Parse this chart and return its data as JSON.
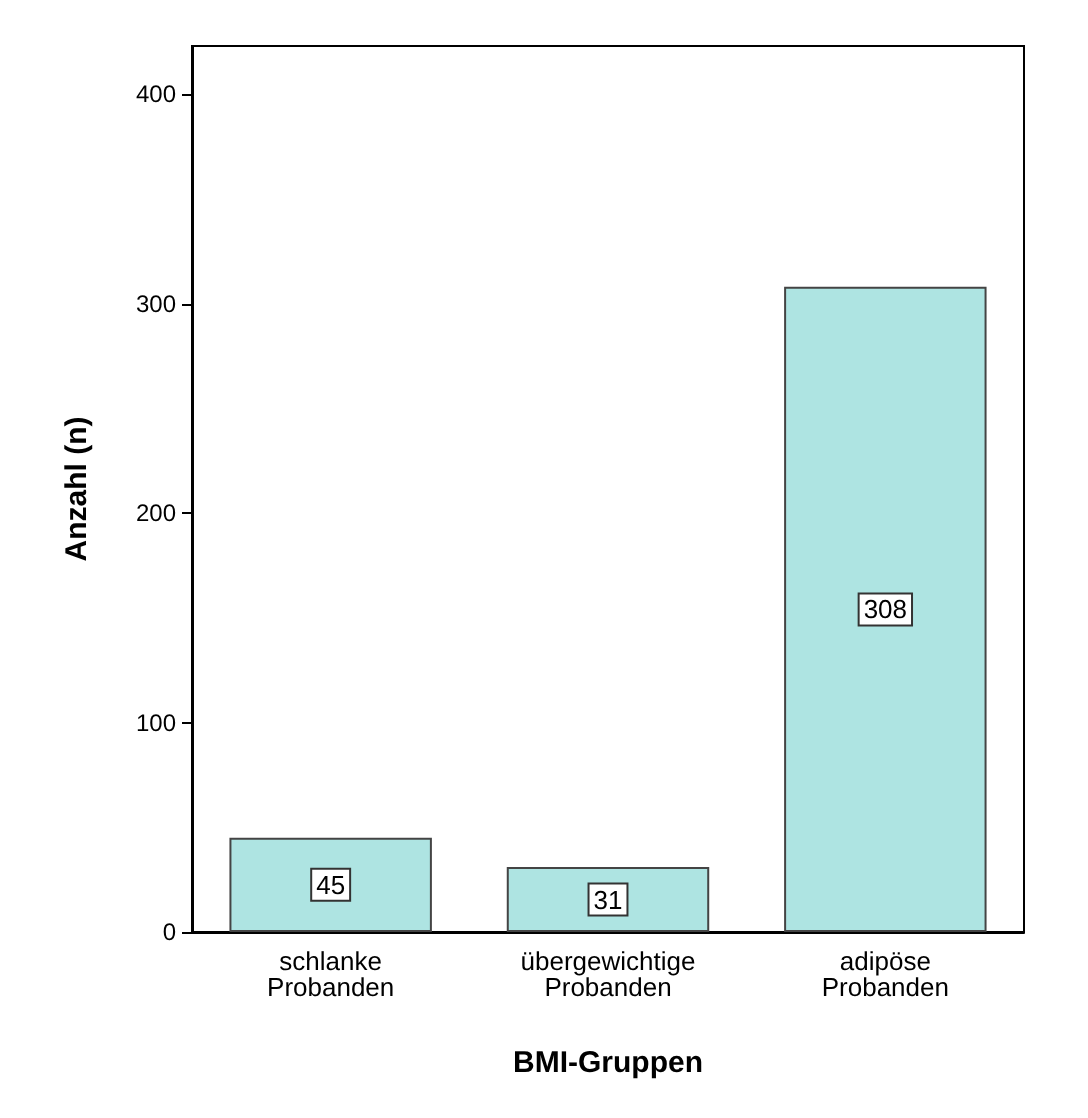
{
  "chart_data": {
    "type": "bar",
    "xlabel": "BMI-Gruppen",
    "ylabel": "Anzahl (n)",
    "categories": [
      "schlanke\nProbanden",
      "übergewichtige\nProbanden",
      "adipöse\nProbanden"
    ],
    "values": [
      45,
      31,
      308
    ],
    "color": "#aee4e2",
    "ylim": [
      0,
      423
    ],
    "yticks": [
      0,
      100,
      200,
      300,
      400
    ],
    "grid": false,
    "data_labels": true
  }
}
